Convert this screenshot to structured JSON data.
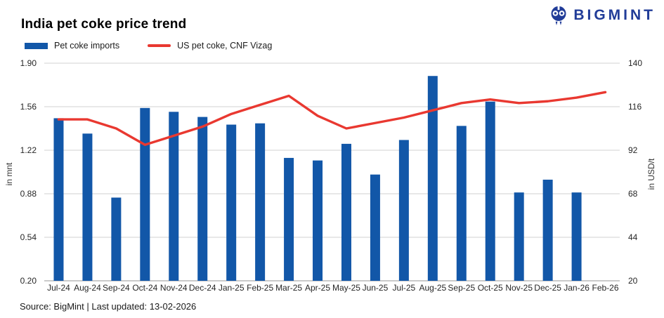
{
  "header": {
    "title": "India pet coke price trend",
    "brand": "BIGMINT"
  },
  "legend": [
    {
      "label": "Pet coke imports",
      "type": "bar",
      "color": "#1257a8"
    },
    {
      "label": "US pet coke, CNF Vizag",
      "type": "line",
      "color": "#e93830"
    }
  ],
  "source_line": "Source: BigMint | Last updated: 13-02-2026",
  "colors": {
    "bar_blue": "#1257a8",
    "line_red": "#e93830",
    "brand_navy": "#213c98",
    "gridline": "#dadada",
    "baseline": "#ababab"
  },
  "chart_data": {
    "type": "bar",
    "title": "India pet coke price trend",
    "categories": [
      "Jul-24",
      "Aug-24",
      "Sep-24",
      "Oct-24",
      "Nov-24",
      "Dec-24",
      "Jan-25",
      "Feb-25",
      "Mar-25",
      "Apr-25",
      "May-25",
      "Jun-25",
      "Jul-25",
      "Aug-25",
      "Sep-25",
      "Oct-25",
      "Nov-25",
      "Dec-25",
      "Jan-26",
      "Feb-26"
    ],
    "series": [
      {
        "name": "Pet coke imports",
        "type": "bar",
        "axis": "left",
        "unit": "mnt",
        "color": "#1257a8",
        "values": [
          1.47,
          1.35,
          0.85,
          1.55,
          1.52,
          1.48,
          1.42,
          1.43,
          1.16,
          1.14,
          1.27,
          1.03,
          1.3,
          1.8,
          1.41,
          1.6,
          0.89,
          0.99,
          0.89,
          null
        ]
      },
      {
        "name": "US pet coke, CNF Vizag",
        "type": "line",
        "axis": "right",
        "unit": "USD/t",
        "color": "#e93830",
        "values": [
          109,
          109,
          104,
          95,
          100,
          105,
          112,
          117,
          122,
          111,
          104,
          107,
          110,
          114,
          118,
          120,
          118,
          119,
          121,
          124
        ]
      }
    ],
    "left_axis": {
      "label": "in mnt",
      "min": 0.2,
      "max": 1.9,
      "ticks": [
        "1.90",
        "1.56",
        "1.22",
        "0.88",
        "0.54",
        "0.20"
      ]
    },
    "right_axis": {
      "label": "in USD/t",
      "min": 20,
      "max": 140,
      "ticks": [
        "140",
        "116",
        "92",
        "68",
        "44",
        "20"
      ]
    },
    "grid": true,
    "legend_position": "top-left"
  }
}
